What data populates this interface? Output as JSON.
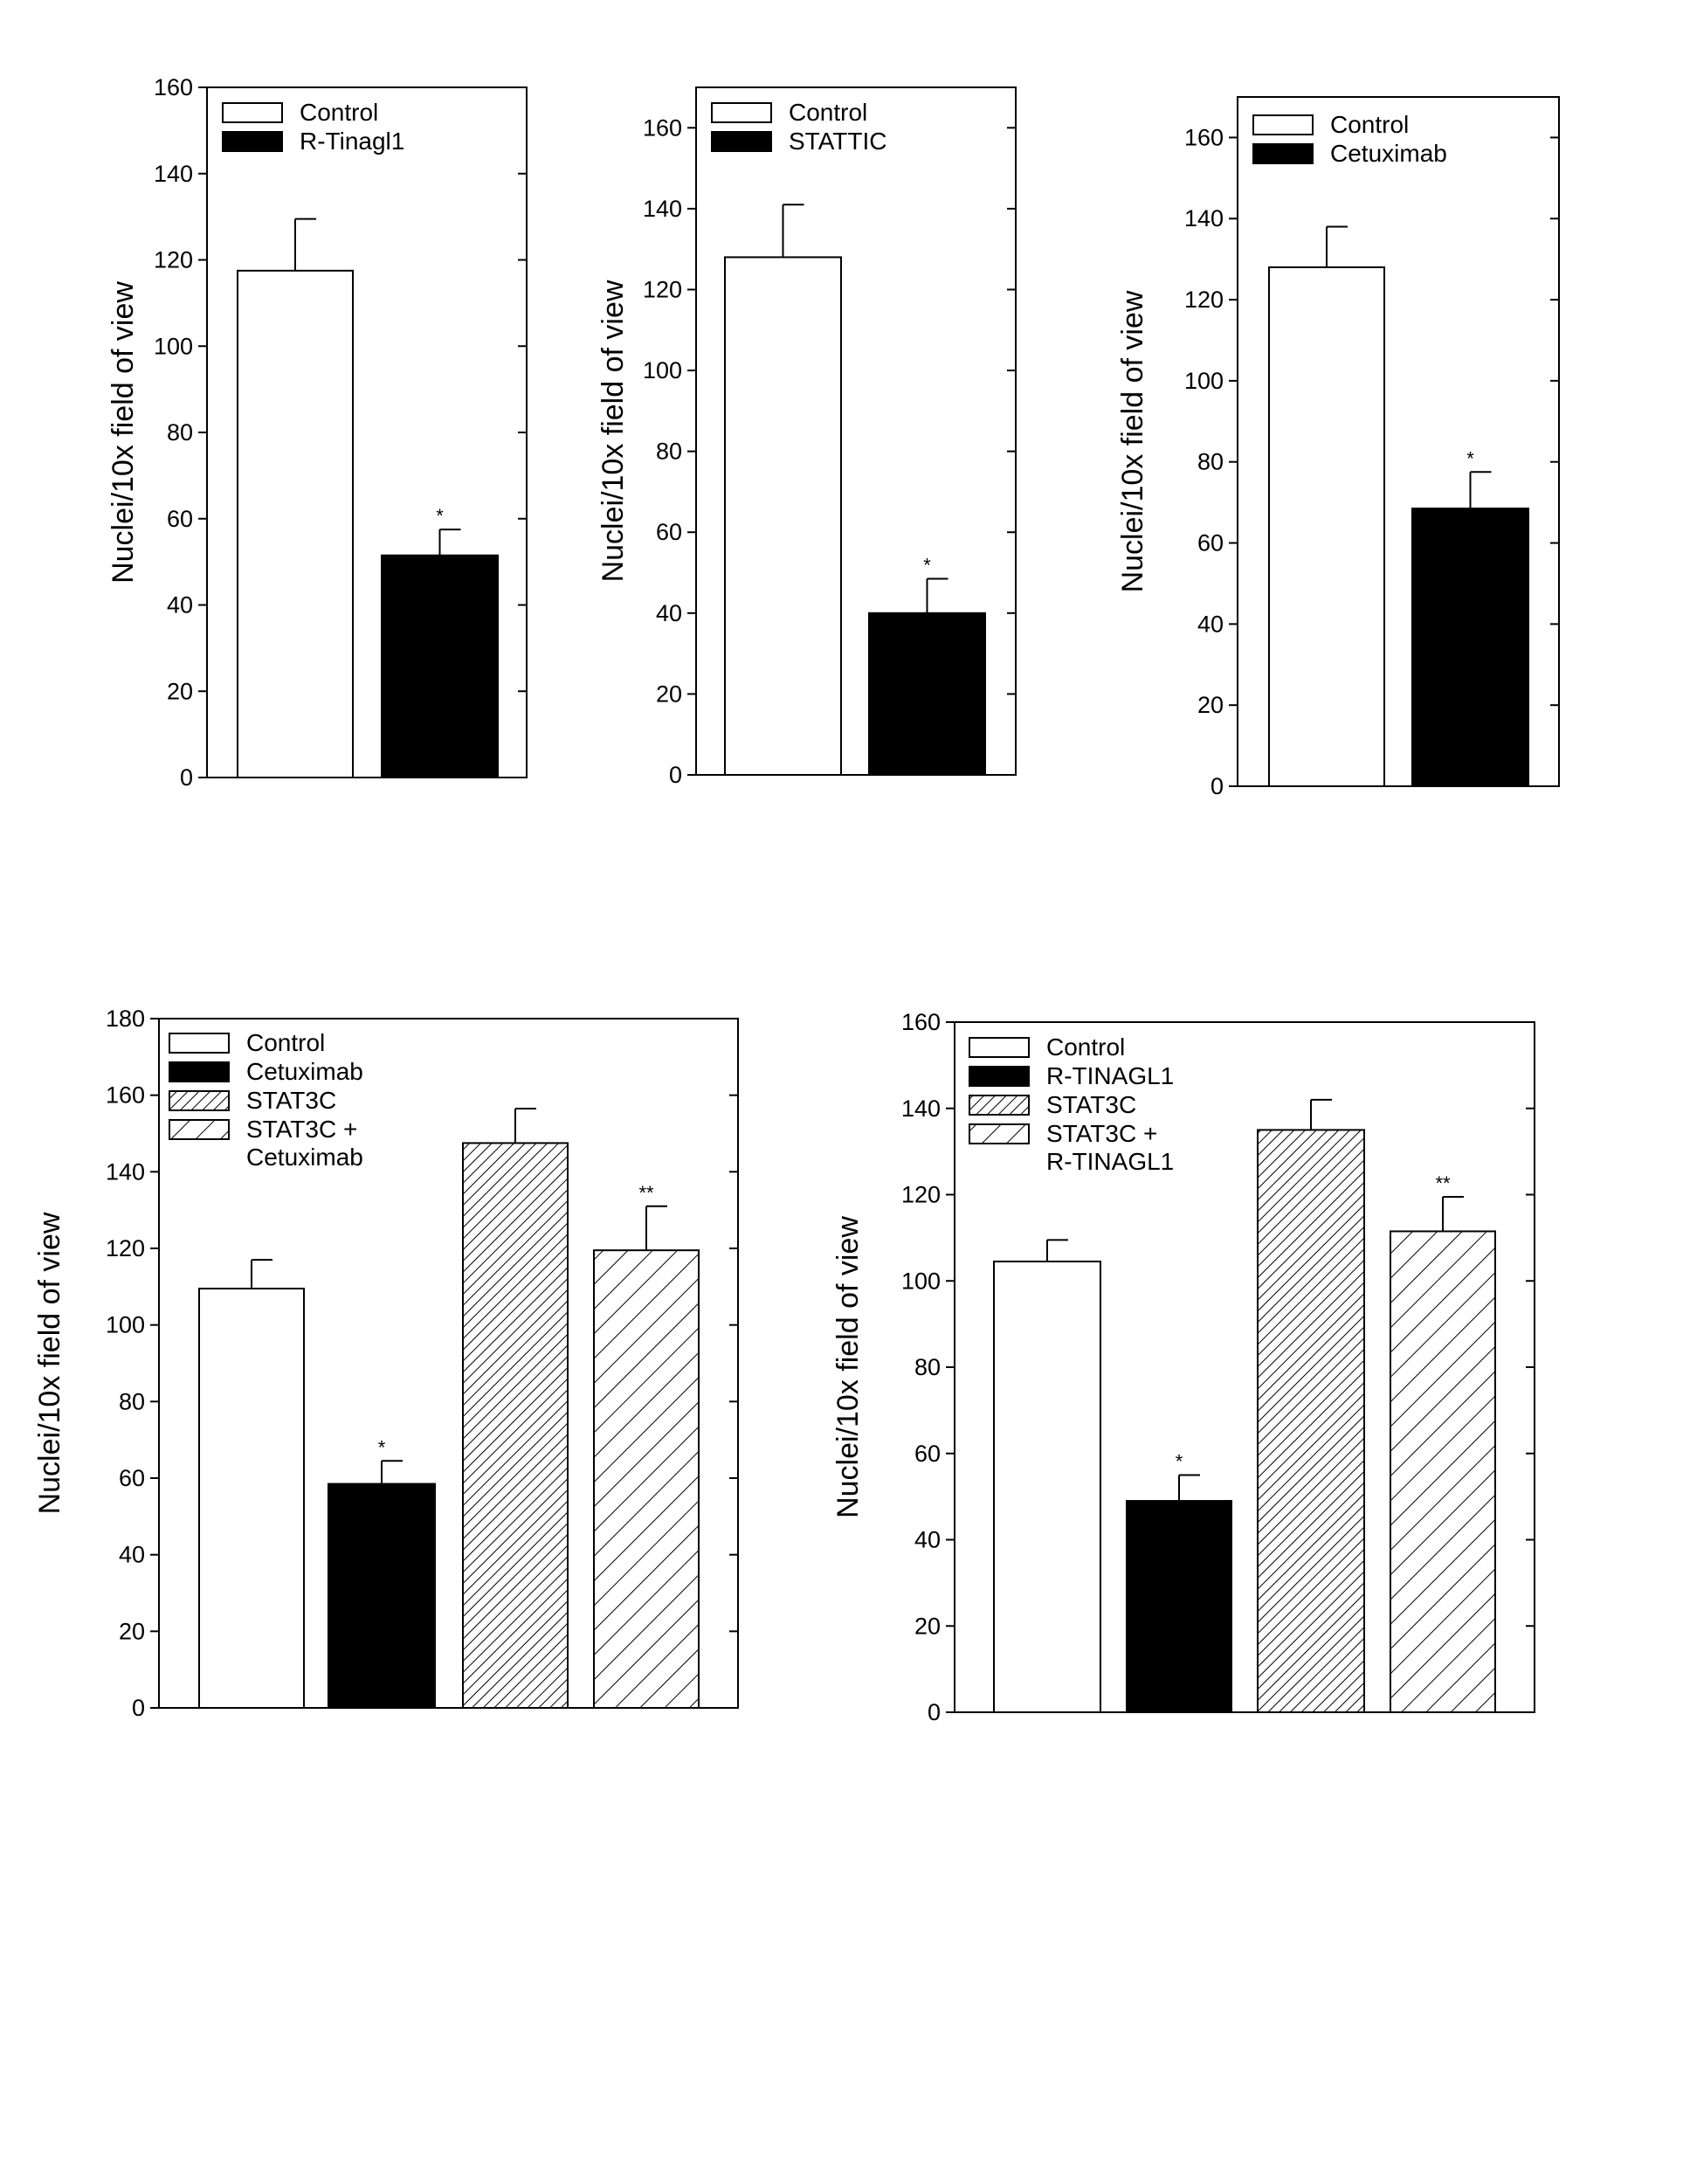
{
  "chart_data": [
    {
      "type": "bar",
      "title": "",
      "xlabel": "",
      "ylabel": "Nuclei/10x field of view",
      "ylim": [
        0,
        160
      ],
      "yticks": [
        0,
        20,
        40,
        60,
        80,
        100,
        120,
        140,
        160
      ],
      "legend_position": "top-left",
      "categories": [
        "Control",
        "R-Tinagl1"
      ],
      "values": [
        117.5,
        51.5
      ],
      "errors": [
        12,
        6
      ],
      "annotations": [
        "",
        "*"
      ],
      "fills": [
        "white",
        "black"
      ]
    },
    {
      "type": "bar",
      "title": "",
      "xlabel": "",
      "ylabel": "Nuclei/10x field of view",
      "ylim": [
        0,
        170
      ],
      "yticks": [
        0,
        20,
        40,
        60,
        80,
        100,
        120,
        140,
        160
      ],
      "legend_position": "top-left",
      "categories": [
        "Control",
        "STATTIC"
      ],
      "values": [
        128,
        40
      ],
      "errors": [
        13,
        8.5
      ],
      "annotations": [
        "",
        "*"
      ],
      "fills": [
        "white",
        "black"
      ]
    },
    {
      "type": "bar",
      "title": "",
      "xlabel": "",
      "ylabel": "Nuclei/10x field of view",
      "ylim": [
        0,
        170
      ],
      "yticks": [
        0,
        20,
        40,
        60,
        80,
        100,
        120,
        140,
        160
      ],
      "legend_position": "top-left",
      "categories": [
        "Control",
        "Cetuximab"
      ],
      "values": [
        128,
        68.5
      ],
      "errors": [
        10,
        9
      ],
      "annotations": [
        "",
        "*"
      ],
      "fills": [
        "white",
        "black"
      ]
    },
    {
      "type": "bar",
      "title": "",
      "xlabel": "",
      "ylabel": "Nuclei/10x field of view",
      "ylim": [
        0,
        180
      ],
      "yticks": [
        0,
        20,
        40,
        60,
        80,
        100,
        120,
        140,
        160,
        180
      ],
      "legend_position": "top-left",
      "categories": [
        "Control",
        "Cetuximab",
        "STAT3C",
        "STAT3C + Cetuximab"
      ],
      "legend_lines": [
        [
          "Control"
        ],
        [
          "Cetuximab"
        ],
        [
          "STAT3C"
        ],
        [
          "STAT3C +",
          "Cetuximab"
        ]
      ],
      "values": [
        109.5,
        58.5,
        147.5,
        119.5
      ],
      "errors": [
        7.5,
        6,
        9,
        11.5
      ],
      "annotations": [
        "",
        "*",
        "",
        "**"
      ],
      "fills": [
        "white",
        "black",
        "dense-hatch",
        "sparse-hatch"
      ]
    },
    {
      "type": "bar",
      "title": "",
      "xlabel": "",
      "ylabel": "Nuclei/10x field of view",
      "ylim": [
        0,
        160
      ],
      "yticks": [
        0,
        20,
        40,
        60,
        80,
        100,
        120,
        140,
        160
      ],
      "legend_position": "top-left",
      "categories": [
        "Control",
        "R-TINAGL1",
        "STAT3C",
        "STAT3C + R-TINAGL1"
      ],
      "legend_lines": [
        [
          "Control"
        ],
        [
          "R-TINAGL1"
        ],
        [
          "STAT3C"
        ],
        [
          "STAT3C +",
          "R-TINAGL1"
        ]
      ],
      "values": [
        104.5,
        49,
        135,
        111.5
      ],
      "errors": [
        5,
        6,
        7,
        8
      ],
      "annotations": [
        "",
        "*",
        "",
        "**"
      ],
      "fills": [
        "white",
        "black",
        "dense-hatch",
        "sparse-hatch"
      ]
    }
  ]
}
